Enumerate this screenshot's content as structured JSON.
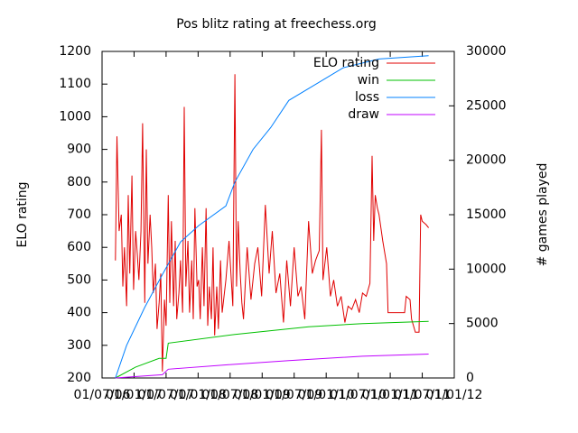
{
  "chart_data": {
    "type": "line",
    "title": "Pos blitz rating at freechess.org",
    "ylabel": "ELO rating",
    "y2label": "# games played",
    "xlim": [
      0,
      66
    ],
    "xticks": [
      {
        "value": 0,
        "label": "01/07/06"
      },
      {
        "value": 6,
        "label": "01/01/07"
      },
      {
        "value": 12,
        "label": "01/07/07"
      },
      {
        "value": 18,
        "label": "01/01/08"
      },
      {
        "value": 24,
        "label": "01/07/08"
      },
      {
        "value": 30,
        "label": "01/01/09"
      },
      {
        "value": 36,
        "label": "01/07/09"
      },
      {
        "value": 42,
        "label": "01/01/10"
      },
      {
        "value": 48,
        "label": "01/07/10"
      },
      {
        "value": 54,
        "label": "01/01/11"
      },
      {
        "value": 60,
        "label": "01/07/11"
      },
      {
        "value": 66,
        "label": "01/01/12"
      }
    ],
    "ylim": [
      200,
      1200
    ],
    "yticks": [
      200,
      300,
      400,
      500,
      600,
      700,
      800,
      900,
      1000,
      1100,
      1200
    ],
    "y2lim": [
      0,
      30000
    ],
    "y2ticks": [
      0,
      5000,
      10000,
      15000,
      20000,
      25000,
      30000
    ],
    "legend": "top right",
    "series": [
      {
        "name": "ELO rating",
        "color": "#e00000",
        "x": [
          2.5,
          2.8,
          3.2,
          3.6,
          3.9,
          4.2,
          4.6,
          4.9,
          5.2,
          5.6,
          5.9,
          6.3,
          6.6,
          6.9,
          7.3,
          7.6,
          8.0,
          8.3,
          8.6,
          9.0,
          9.3,
          9.6,
          10.0,
          10.3,
          10.7,
          11.0,
          11.3,
          11.7,
          12.0,
          12.4,
          12.7,
          13.0,
          13.4,
          13.7,
          14.0,
          14.4,
          14.7,
          15.1,
          15.4,
          15.7,
          16.1,
          16.4,
          16.8,
          17.1,
          17.4,
          17.8,
          18.1,
          18.4,
          18.8,
          19.1,
          19.5,
          19.8,
          20.1,
          20.5,
          20.8,
          21.1,
          21.5,
          21.8,
          22.2,
          22.5,
          23.2,
          23.8,
          24.5,
          24.9,
          25.2,
          25.5,
          25.9,
          26.2,
          26.5,
          27.2,
          27.9,
          28.6,
          29.2,
          29.9,
          30.6,
          31.3,
          31.9,
          32.6,
          33.3,
          34.0,
          34.6,
          35.3,
          36.0,
          36.7,
          37.3,
          38.0,
          38.7,
          39.4,
          40.0,
          40.7,
          41.1,
          41.4,
          42.1,
          42.8,
          43.4,
          44.1,
          44.8,
          45.5,
          46.1,
          46.8,
          47.5,
          48.2,
          48.8,
          49.5,
          50.2,
          50.6,
          50.9,
          51.2,
          51.6,
          51.9,
          52.6,
          53.3,
          53.6,
          55.3,
          56.7,
          57.0,
          57.7,
          58.0,
          58.7,
          59.4,
          59.7,
          60.0,
          60.7,
          61.2
        ],
        "values": [
          560,
          940,
          650,
          700,
          480,
          600,
          420,
          760,
          520,
          820,
          470,
          650,
          580,
          500,
          650,
          980,
          430,
          900,
          550,
          700,
          600,
          460,
          550,
          350,
          430,
          520,
          220,
          440,
          360,
          760,
          430,
          680,
          420,
          620,
          380,
          460,
          560,
          400,
          1030,
          480,
          620,
          400,
          560,
          380,
          720,
          480,
          500,
          380,
          600,
          420,
          720,
          360,
          480,
          380,
          600,
          330,
          480,
          350,
          560,
          400,
          500,
          620,
          420,
          1130,
          480,
          680,
          520,
          430,
          380,
          600,
          440,
          550,
          600,
          450,
          730,
          520,
          650,
          460,
          520,
          370,
          560,
          420,
          600,
          450,
          480,
          380,
          680,
          520,
          560,
          590,
          960,
          500,
          600,
          450,
          500,
          420,
          450,
          370,
          420,
          410,
          440,
          400,
          460,
          450,
          490,
          880,
          620,
          760,
          720,
          700,
          620,
          550,
          400,
          400,
          400,
          450,
          440,
          380,
          340,
          340,
          700,
          680,
          670,
          660
        ]
      },
      {
        "name": "win",
        "color": "#00c000",
        "axis": "y2",
        "x": [
          2.5,
          6.3,
          10.7,
          12.0,
          12.4,
          24.9,
          38.7,
          48.8,
          61.2
        ],
        "values": [
          0,
          1000,
          1800,
          1800,
          3200,
          4000,
          4700,
          5000,
          5200
        ]
      },
      {
        "name": "loss",
        "color": "#0080ff",
        "axis": "y2",
        "x": [
          2.5,
          4.6,
          8.0,
          11.3,
          14.7,
          18.1,
          23.2,
          24.9,
          28.3,
          31.6,
          35.0,
          40.1,
          45.2,
          51.9,
          61.2
        ],
        "values": [
          0,
          3000,
          6500,
          9500,
          12500,
          14000,
          15800,
          18000,
          21000,
          23000,
          25500,
          27000,
          28500,
          29300,
          29600
        ]
      },
      {
        "name": "draw",
        "color": "#c000ff",
        "axis": "y2",
        "x": [
          2.5,
          11.3,
          12.4,
          23.2,
          35.0,
          48.8,
          61.2
        ],
        "values": [
          0,
          300,
          800,
          1200,
          1600,
          2000,
          2200
        ]
      }
    ]
  }
}
